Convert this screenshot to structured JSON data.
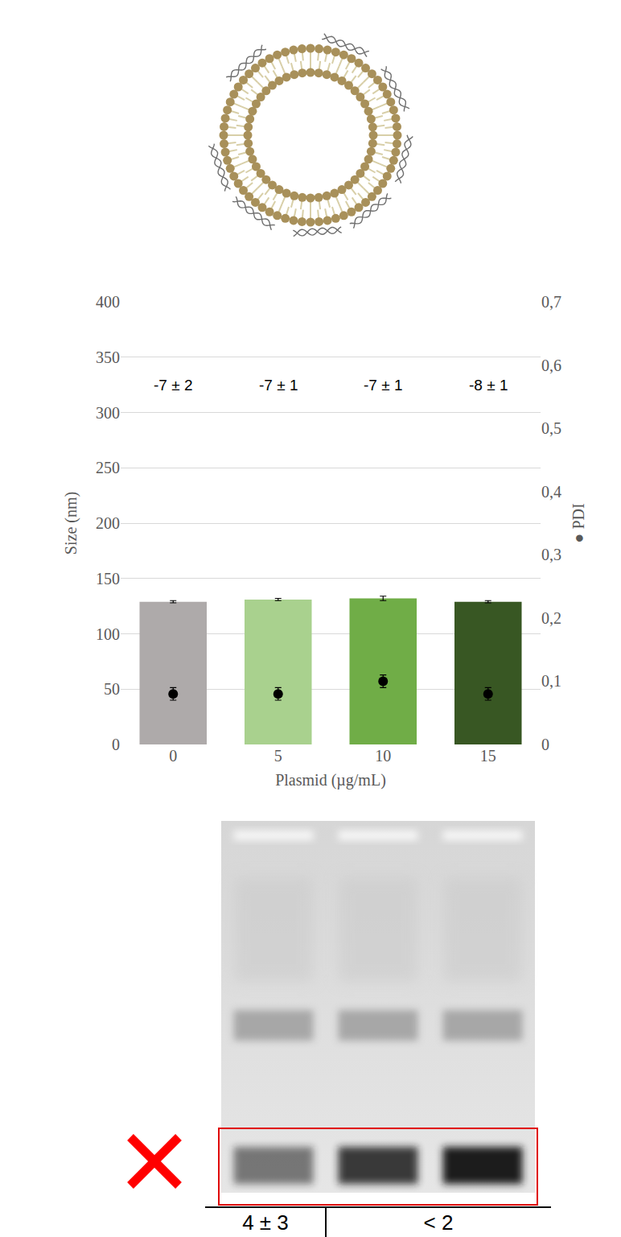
{
  "chart_data": {
    "type": "bar",
    "x_label": "Plasmid (µg/mL)",
    "y_label": "Size (nm)",
    "y2_label": "● PDI",
    "categories": [
      "0",
      "5",
      "10",
      "15"
    ],
    "ylim": [
      0,
      400
    ],
    "yticks": [
      0,
      50,
      100,
      150,
      200,
      250,
      300,
      350,
      400
    ],
    "y2lim": [
      0,
      0.7
    ],
    "y2ticks": [
      0,
      {
        "value": 0.1,
        "label": "0,1"
      },
      {
        "value": 0.2,
        "label": "0,2"
      },
      {
        "value": 0.3,
        "label": "0,3"
      },
      {
        "value": 0.4,
        "label": "0,4"
      },
      {
        "value": 0.5,
        "label": "0,5"
      },
      {
        "value": 0.6,
        "label": "0,6"
      },
      {
        "value": 0.7,
        "label": "0,7"
      }
    ],
    "grid": true,
    "series": [
      {
        "type": "bar",
        "colors": [
          "#aeaaaa",
          "#a9d18e",
          "#70ad47",
          "#385723"
        ],
        "values": [
          129,
          131,
          132,
          129
        ],
        "errors": [
          1,
          1,
          2,
          1
        ]
      },
      {
        "type": "scatter",
        "axis": "y2",
        "color": "#000000",
        "marker": "circle",
        "values": [
          0.08,
          0.08,
          0.1,
          0.08
        ],
        "errors": [
          0.01,
          0.01,
          0.01,
          0.01
        ]
      }
    ],
    "annotations": [
      "-7 ± 2",
      "-7 ± 1",
      "-7 ± 1",
      "-8 ± 1"
    ]
  },
  "gel": {
    "lanes": 3,
    "labels": [
      "4 ± 3",
      "< 2"
    ]
  }
}
